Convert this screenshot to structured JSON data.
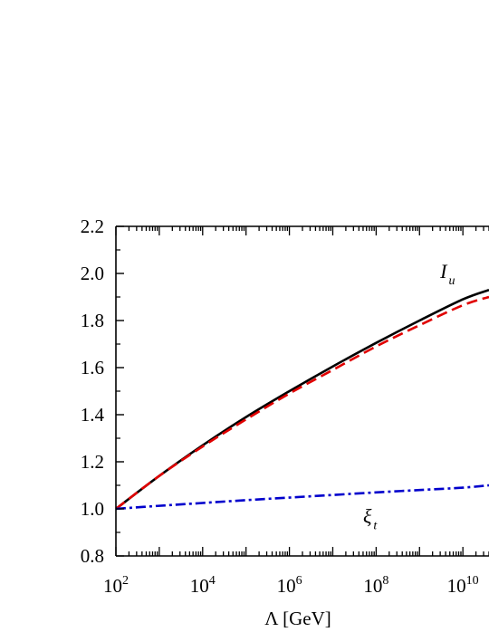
{
  "chart_data": {
    "type": "line",
    "xlabel": "Λ [GeV]",
    "x_scale": "log",
    "xlim": [
      100,
      40000000000
    ],
    "ylim": [
      0.8,
      2.2
    ],
    "x_tick_labels": [
      {
        "value": 100,
        "base": "10",
        "exp": "2"
      },
      {
        "value": 10000,
        "base": "10",
        "exp": "4"
      },
      {
        "value": 1000000,
        "base": "10",
        "exp": "6"
      },
      {
        "value": 100000000,
        "base": "10",
        "exp": "8"
      },
      {
        "value": 10000000000,
        "base": "10",
        "exp": "10"
      }
    ],
    "y_ticks": [
      0.8,
      1.0,
      1.2,
      1.4,
      1.6,
      1.8,
      2.0,
      2.2
    ],
    "y_tick_labels": [
      "0.8",
      "1.0",
      "1.2",
      "1.4",
      "1.6",
      "1.8",
      "2.0",
      "2.2"
    ],
    "series": [
      {
        "style": "solid",
        "color": "#000000",
        "x": [
          100,
          1000,
          10000,
          100000,
          1000000,
          10000000,
          100000000,
          1000000000,
          10000000000,
          40000000000
        ],
        "y": [
          1.0,
          1.14,
          1.27,
          1.39,
          1.5,
          1.605,
          1.705,
          1.8,
          1.89,
          1.93
        ]
      },
      {
        "style": "dashed",
        "color": "#e00000",
        "x": [
          100,
          1000,
          10000,
          100000,
          1000000,
          10000000,
          100000000,
          1000000000,
          10000000000,
          40000000000
        ],
        "y": [
          1.0,
          1.14,
          1.265,
          1.38,
          1.49,
          1.59,
          1.69,
          1.78,
          1.865,
          1.9
        ]
      },
      {
        "style": "dashdot",
        "color": "#0000cc",
        "x": [
          100,
          1000,
          10000,
          100000,
          1000000,
          10000000,
          100000000,
          1000000000,
          10000000000,
          40000000000
        ],
        "y": [
          1.0,
          1.013,
          1.025,
          1.037,
          1.048,
          1.059,
          1.07,
          1.08,
          1.09,
          1.1
        ]
      }
    ],
    "annotations": [
      {
        "main": "I",
        "sub": "u",
        "x": 3000000000,
        "y": 1.98
      },
      {
        "main": "ξ",
        "sub": "t",
        "x": 50000000,
        "y": 0.94
      }
    ]
  }
}
